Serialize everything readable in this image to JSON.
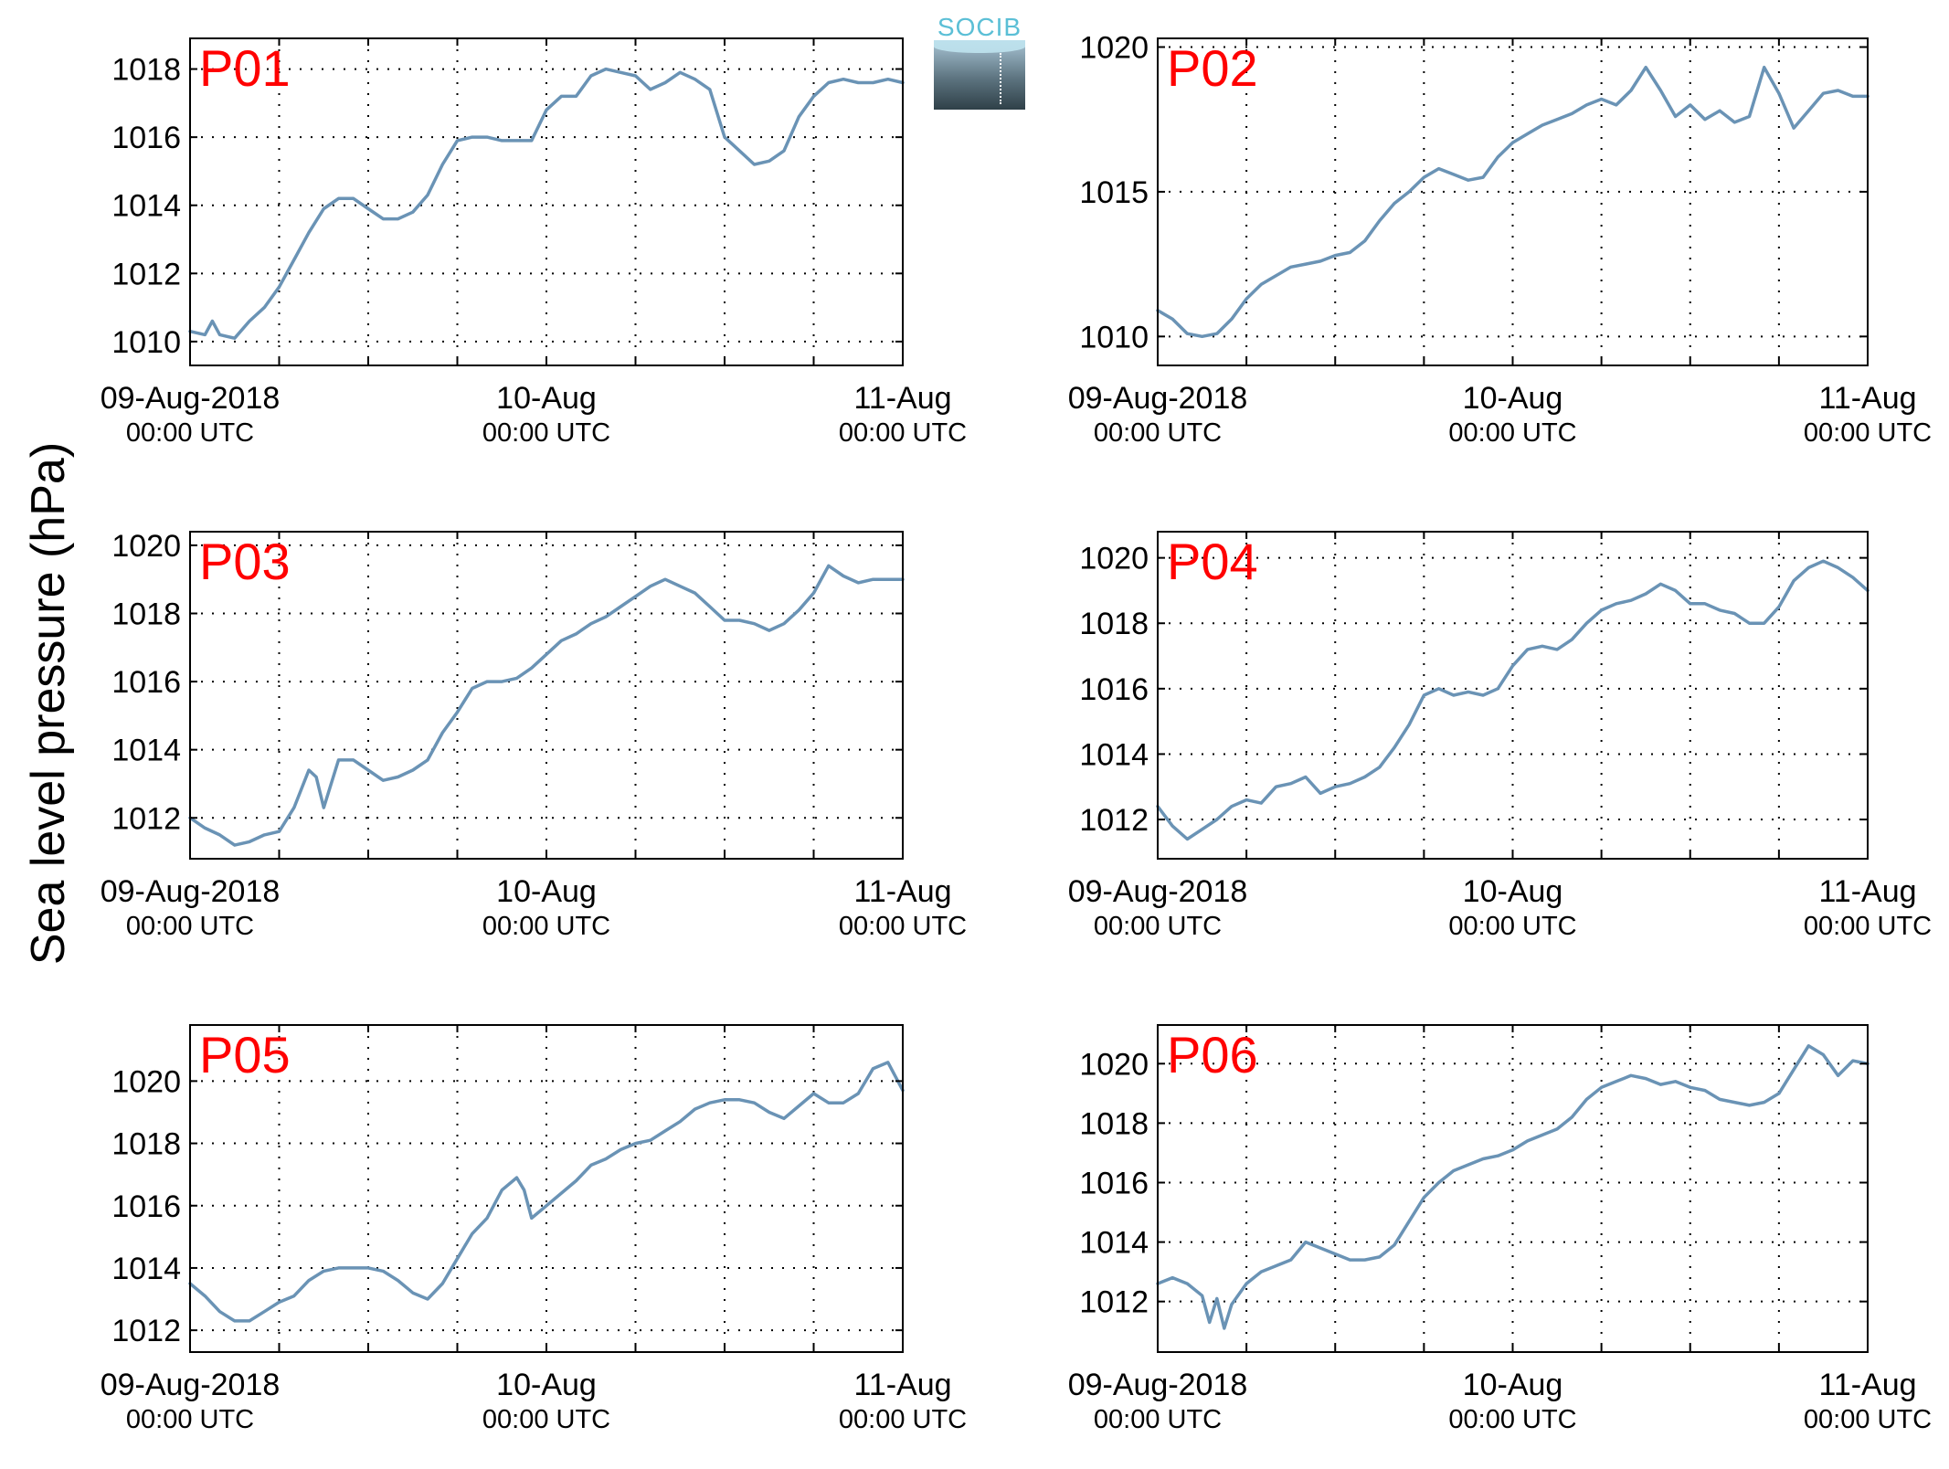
{
  "figure": {
    "ylabel": "Sea level pressure (hPa)",
    "logo_text": "SOCIB",
    "colors": {
      "line": "#6a93b5",
      "station_label": "#ff0000",
      "axis": "#000000",
      "grid": "#000000"
    }
  },
  "chart_data": [
    {
      "type": "line",
      "station": "P01",
      "xlim": [
        0,
        48
      ],
      "ylim": [
        1009.3,
        1018.9
      ],
      "yticks": [
        1010,
        1012,
        1014,
        1016,
        1018
      ],
      "xticks": [
        0,
        6,
        12,
        18,
        24,
        30,
        36,
        42,
        48
      ],
      "xtick_labels": [
        {
          "at": 0,
          "line1": "09-Aug-2018",
          "line2": "00:00 UTC"
        },
        {
          "at": 24,
          "line1": "10-Aug",
          "line2": "00:00 UTC"
        },
        {
          "at": 48,
          "line1": "11-Aug",
          "line2": "00:00 UTC"
        }
      ],
      "grid": true,
      "x": [
        0,
        1,
        1.5,
        2,
        3,
        4,
        5,
        6,
        7,
        8,
        9,
        10,
        11,
        12,
        13,
        14,
        15,
        16,
        17,
        18,
        19,
        20,
        21,
        22,
        23,
        24,
        25,
        26,
        27,
        28,
        29,
        30,
        31,
        32,
        33,
        34,
        35,
        36,
        37,
        38,
        39,
        40,
        41,
        42,
        43,
        44,
        45,
        46,
        47,
        48
      ],
      "y": [
        1010.3,
        1010.2,
        1010.6,
        1010.2,
        1010.1,
        1010.6,
        1011.0,
        1011.6,
        1012.4,
        1013.2,
        1013.9,
        1014.2,
        1014.2,
        1013.9,
        1013.6,
        1013.6,
        1013.8,
        1014.3,
        1015.2,
        1015.9,
        1016.0,
        1016.0,
        1015.9,
        1015.9,
        1015.9,
        1016.8,
        1017.2,
        1017.2,
        1017.8,
        1018.0,
        1017.9,
        1017.8,
        1017.4,
        1017.6,
        1017.9,
        1017.7,
        1017.4,
        1016.0,
        1015.6,
        1015.2,
        1015.3,
        1015.6,
        1016.6,
        1017.2,
        1017.6,
        1017.7,
        1017.6,
        1017.6,
        1017.7,
        1017.6
      ]
    },
    {
      "type": "line",
      "station": "P02",
      "xlim": [
        0,
        48
      ],
      "ylim": [
        1009.0,
        1020.3
      ],
      "yticks": [
        1010,
        1015,
        1020
      ],
      "xticks": [
        0,
        6,
        12,
        18,
        24,
        30,
        36,
        42,
        48
      ],
      "xtick_labels": [
        {
          "at": 0,
          "line1": "09-Aug-2018",
          "line2": "00:00 UTC"
        },
        {
          "at": 24,
          "line1": "10-Aug",
          "line2": "00:00 UTC"
        },
        {
          "at": 48,
          "line1": "11-Aug",
          "line2": "00:00 UTC"
        }
      ],
      "grid": true,
      "x": [
        0,
        1,
        2,
        3,
        4,
        5,
        6,
        7,
        8,
        9,
        10,
        11,
        12,
        13,
        14,
        15,
        16,
        17,
        18,
        19,
        20,
        21,
        22,
        23,
        24,
        25,
        26,
        27,
        28,
        29,
        30,
        31,
        32,
        33,
        34,
        35,
        36,
        37,
        38,
        39,
        40,
        41,
        42,
        43,
        44,
        45,
        46,
        47,
        48
      ],
      "y": [
        1010.9,
        1010.6,
        1010.1,
        1010.0,
        1010.1,
        1010.6,
        1011.3,
        1011.8,
        1012.1,
        1012.4,
        1012.5,
        1012.6,
        1012.8,
        1012.9,
        1013.3,
        1014.0,
        1014.6,
        1015.0,
        1015.5,
        1015.8,
        1015.6,
        1015.4,
        1015.5,
        1016.2,
        1016.7,
        1017.0,
        1017.3,
        1017.5,
        1017.7,
        1018.0,
        1018.2,
        1018.0,
        1018.5,
        1019.3,
        1018.5,
        1017.6,
        1018.0,
        1017.5,
        1017.8,
        1017.4,
        1017.6,
        1019.3,
        1018.4,
        1017.2,
        1017.8,
        1018.4,
        1018.5,
        1018.3,
        1018.3
      ]
    },
    {
      "type": "line",
      "station": "P03",
      "xlim": [
        0,
        48
      ],
      "ylim": [
        1010.8,
        1020.4
      ],
      "yticks": [
        1012,
        1014,
        1016,
        1018,
        1020
      ],
      "xticks": [
        0,
        6,
        12,
        18,
        24,
        30,
        36,
        42,
        48
      ],
      "xtick_labels": [
        {
          "at": 0,
          "line1": "09-Aug-2018",
          "line2": "00:00 UTC"
        },
        {
          "at": 24,
          "line1": "10-Aug",
          "line2": "00:00 UTC"
        },
        {
          "at": 48,
          "line1": "11-Aug",
          "line2": "00:00 UTC"
        }
      ],
      "grid": true,
      "x": [
        0,
        1,
        2,
        3,
        4,
        5,
        6,
        7,
        8,
        8.5,
        9,
        10,
        11,
        12,
        13,
        14,
        15,
        16,
        17,
        18,
        19,
        20,
        21,
        22,
        23,
        24,
        25,
        26,
        27,
        28,
        29,
        30,
        31,
        32,
        33,
        34,
        35,
        36,
        37,
        38,
        39,
        40,
        41,
        42,
        43,
        44,
        45,
        46,
        47,
        48
      ],
      "y": [
        1012.0,
        1011.7,
        1011.5,
        1011.2,
        1011.3,
        1011.5,
        1011.6,
        1012.3,
        1013.4,
        1013.2,
        1012.3,
        1013.7,
        1013.7,
        1013.4,
        1013.1,
        1013.2,
        1013.4,
        1013.7,
        1014.5,
        1015.1,
        1015.8,
        1016.0,
        1016.0,
        1016.1,
        1016.4,
        1016.8,
        1017.2,
        1017.4,
        1017.7,
        1017.9,
        1018.2,
        1018.5,
        1018.8,
        1019.0,
        1018.8,
        1018.6,
        1018.2,
        1017.8,
        1017.8,
        1017.7,
        1017.5,
        1017.7,
        1018.1,
        1018.6,
        1019.4,
        1019.1,
        1018.9,
        1019.0,
        1019.0,
        1019.0
      ]
    },
    {
      "type": "line",
      "station": "P04",
      "xlim": [
        0,
        48
      ],
      "ylim": [
        1010.8,
        1020.8
      ],
      "yticks": [
        1012,
        1014,
        1016,
        1018,
        1020
      ],
      "xticks": [
        0,
        6,
        12,
        18,
        24,
        30,
        36,
        42,
        48
      ],
      "xtick_labels": [
        {
          "at": 0,
          "line1": "09-Aug-2018",
          "line2": "00:00 UTC"
        },
        {
          "at": 24,
          "line1": "10-Aug",
          "line2": "00:00 UTC"
        },
        {
          "at": 48,
          "line1": "11-Aug",
          "line2": "00:00 UTC"
        }
      ],
      "grid": true,
      "x": [
        0,
        1,
        2,
        3,
        4,
        5,
        6,
        7,
        8,
        9,
        10,
        11,
        12,
        13,
        14,
        15,
        16,
        17,
        18,
        19,
        20,
        21,
        22,
        23,
        24,
        25,
        26,
        27,
        28,
        29,
        30,
        31,
        32,
        33,
        34,
        35,
        36,
        37,
        38,
        39,
        40,
        41,
        42,
        43,
        44,
        45,
        46,
        47,
        48
      ],
      "y": [
        1012.4,
        1011.8,
        1011.4,
        1011.7,
        1012.0,
        1012.4,
        1012.6,
        1012.5,
        1013.0,
        1013.1,
        1013.3,
        1012.8,
        1013.0,
        1013.1,
        1013.3,
        1013.6,
        1014.2,
        1014.9,
        1015.8,
        1016.0,
        1015.8,
        1015.9,
        1015.8,
        1016.0,
        1016.7,
        1017.2,
        1017.3,
        1017.2,
        1017.5,
        1018.0,
        1018.4,
        1018.6,
        1018.7,
        1018.9,
        1019.2,
        1019.0,
        1018.6,
        1018.6,
        1018.4,
        1018.3,
        1018.0,
        1018.0,
        1018.5,
        1019.3,
        1019.7,
        1019.9,
        1019.7,
        1019.4,
        1019.0
      ]
    },
    {
      "type": "line",
      "station": "P05",
      "xlim": [
        0,
        48
      ],
      "ylim": [
        1011.3,
        1021.8
      ],
      "yticks": [
        1012,
        1014,
        1016,
        1018,
        1020
      ],
      "xticks": [
        0,
        6,
        12,
        18,
        24,
        30,
        36,
        42,
        48
      ],
      "xtick_labels": [
        {
          "at": 0,
          "line1": "09-Aug-2018",
          "line2": "00:00 UTC"
        },
        {
          "at": 24,
          "line1": "10-Aug",
          "line2": "00:00 UTC"
        },
        {
          "at": 48,
          "line1": "11-Aug",
          "line2": "00:00 UTC"
        }
      ],
      "grid": true,
      "x": [
        0,
        1,
        2,
        3,
        4,
        5,
        6,
        7,
        8,
        9,
        10,
        11,
        12,
        13,
        14,
        15,
        16,
        17,
        18,
        19,
        20,
        21,
        22,
        22.5,
        23,
        24,
        25,
        26,
        27,
        28,
        29,
        30,
        31,
        32,
        33,
        34,
        35,
        36,
        37,
        38,
        39,
        40,
        41,
        42,
        43,
        44,
        45,
        46,
        47,
        48
      ],
      "y": [
        1013.5,
        1013.1,
        1012.6,
        1012.3,
        1012.3,
        1012.6,
        1012.9,
        1013.1,
        1013.6,
        1013.9,
        1014.0,
        1014.0,
        1014.0,
        1013.9,
        1013.6,
        1013.2,
        1013.0,
        1013.5,
        1014.3,
        1015.1,
        1015.6,
        1016.5,
        1016.9,
        1016.5,
        1015.6,
        1016.0,
        1016.4,
        1016.8,
        1017.3,
        1017.5,
        1017.8,
        1018.0,
        1018.1,
        1018.4,
        1018.7,
        1019.1,
        1019.3,
        1019.4,
        1019.4,
        1019.3,
        1019.0,
        1018.8,
        1019.2,
        1019.6,
        1019.3,
        1019.3,
        1019.6,
        1020.4,
        1020.6,
        1019.7
      ]
    },
    {
      "type": "line",
      "station": "P06",
      "xlim": [
        0,
        48
      ],
      "ylim": [
        1010.3,
        1021.3
      ],
      "yticks": [
        1012,
        1014,
        1016,
        1018,
        1020
      ],
      "xticks": [
        0,
        6,
        12,
        18,
        24,
        30,
        36,
        42,
        48
      ],
      "xtick_labels": [
        {
          "at": 0,
          "line1": "09-Aug-2018",
          "line2": "00:00 UTC"
        },
        {
          "at": 24,
          "line1": "10-Aug",
          "line2": "00:00 UTC"
        },
        {
          "at": 48,
          "line1": "11-Aug",
          "line2": "00:00 UTC"
        }
      ],
      "grid": true,
      "x": [
        0,
        1,
        2,
        3,
        3.5,
        4,
        4.5,
        5,
        6,
        7,
        8,
        9,
        10,
        11,
        12,
        13,
        14,
        15,
        16,
        17,
        18,
        19,
        20,
        21,
        22,
        23,
        24,
        25,
        26,
        27,
        28,
        29,
        30,
        31,
        32,
        33,
        34,
        35,
        36,
        37,
        38,
        39,
        40,
        41,
        42,
        43,
        44,
        45,
        46,
        47,
        48
      ],
      "y": [
        1012.6,
        1012.8,
        1012.6,
        1012.2,
        1011.3,
        1012.1,
        1011.1,
        1011.9,
        1012.6,
        1013.0,
        1013.2,
        1013.4,
        1014.0,
        1013.8,
        1013.6,
        1013.4,
        1013.4,
        1013.5,
        1013.9,
        1014.7,
        1015.5,
        1016.0,
        1016.4,
        1016.6,
        1016.8,
        1016.9,
        1017.1,
        1017.4,
        1017.6,
        1017.8,
        1018.2,
        1018.8,
        1019.2,
        1019.4,
        1019.6,
        1019.5,
        1019.3,
        1019.4,
        1019.2,
        1019.1,
        1018.8,
        1018.7,
        1018.6,
        1018.7,
        1019.0,
        1019.8,
        1020.6,
        1020.3,
        1019.6,
        1020.1,
        1020.0
      ]
    }
  ]
}
